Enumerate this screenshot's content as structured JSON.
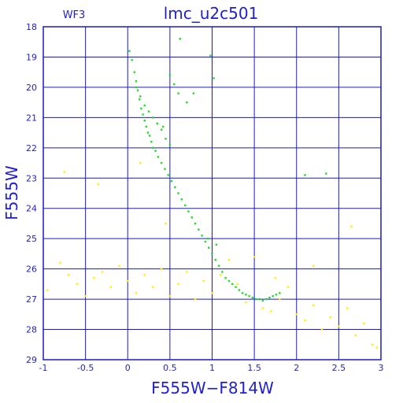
{
  "chart_data": {
    "type": "scatter",
    "title": "lmc_u2c501",
    "corner_label": "WF3",
    "xlabel": "F555W−F814W",
    "ylabel": "F555W",
    "xlim": [
      -1,
      3
    ],
    "ylim": [
      29,
      18
    ],
    "y_inverted": true,
    "grid": true,
    "x_ticks": [
      -1,
      -0.5,
      0,
      0.5,
      1,
      1.5,
      2,
      2.5,
      3
    ],
    "x_tick_labels": [
      "-1",
      "-0.5",
      "0",
      "0.5",
      "1",
      "1.5",
      "2",
      "2.5",
      "3"
    ],
    "y_ticks": [
      18,
      19,
      20,
      21,
      22,
      23,
      24,
      25,
      26,
      27,
      28,
      29
    ],
    "y_tick_labels": [
      "18",
      "19",
      "20",
      "21",
      "22",
      "23",
      "24",
      "25",
      "26",
      "27",
      "28",
      "29"
    ],
    "colors": {
      "axes": "#1a1acc",
      "main_sequence": "#22dd22",
      "field": "#ffee00"
    },
    "series": [
      {
        "color": "#22dd22",
        "x": [
          0.02,
          0.05,
          0.08,
          0.1,
          0.12,
          0.14,
          0.16,
          0.18,
          0.2,
          0.22,
          0.24,
          0.26,
          0.28,
          0.1,
          0.15,
          0.2,
          0.25,
          0.3,
          0.35,
          0.4,
          0.45,
          0.5,
          0.3,
          0.33,
          0.36,
          0.4,
          0.44,
          0.48,
          0.52,
          0.56,
          0.6,
          0.64,
          0.68,
          0.72,
          0.76,
          0.8,
          0.84,
          0.88,
          0.92,
          0.96,
          1.0,
          1.04,
          1.08,
          1.12,
          1.16,
          1.2,
          1.24,
          1.28,
          1.32,
          1.36,
          1.4,
          1.44,
          1.48,
          1.52,
          1.56,
          1.6,
          1.64,
          1.68,
          1.72,
          1.76,
          1.8,
          0.98,
          1.02,
          0.62,
          0.5,
          0.55,
          0.6,
          0.7,
          0.78,
          2.1,
          2.35,
          0.95,
          1.05,
          0.42
        ],
        "y": [
          18.8,
          19.1,
          19.5,
          19.8,
          20.1,
          20.4,
          20.7,
          20.9,
          21.1,
          21.3,
          21.5,
          21.6,
          21.8,
          20.0,
          20.3,
          20.6,
          20.8,
          21.0,
          21.2,
          21.4,
          21.7,
          21.9,
          22.0,
          22.1,
          22.3,
          22.5,
          22.7,
          22.9,
          23.1,
          23.3,
          23.5,
          23.7,
          23.9,
          24.1,
          24.3,
          24.5,
          24.7,
          24.9,
          25.1,
          25.3,
          25.5,
          25.7,
          25.9,
          26.1,
          26.3,
          26.4,
          26.5,
          26.6,
          26.7,
          26.8,
          26.85,
          26.9,
          26.95,
          27.0,
          27.0,
          27.05,
          27.0,
          26.95,
          26.9,
          26.85,
          26.8,
          18.95,
          19.7,
          18.4,
          19.6,
          19.9,
          20.2,
          20.5,
          20.2,
          22.9,
          22.85,
          25.0,
          25.2,
          21.3
        ]
      },
      {
        "color": "#ffee00",
        "x": [
          -0.95,
          -0.8,
          -0.7,
          -0.6,
          -0.5,
          -0.4,
          -0.3,
          -0.2,
          -0.1,
          0.0,
          0.1,
          0.2,
          0.3,
          0.4,
          0.5,
          0.6,
          0.7,
          0.8,
          0.9,
          1.0,
          1.1,
          1.2,
          1.3,
          1.4,
          1.5,
          1.6,
          1.7,
          1.8,
          1.9,
          2.0,
          2.1,
          2.2,
          2.3,
          2.4,
          2.5,
          2.6,
          2.7,
          2.8,
          2.9,
          2.95,
          -0.75,
          -0.35,
          0.15,
          0.45,
          2.65,
          2.2,
          1.75
        ],
        "y": [
          26.7,
          25.8,
          26.2,
          26.5,
          26.9,
          26.3,
          26.1,
          26.6,
          25.9,
          26.4,
          26.8,
          26.2,
          26.6,
          26.0,
          26.9,
          26.5,
          26.1,
          27.0,
          26.4,
          26.8,
          26.2,
          25.7,
          26.5,
          27.1,
          25.6,
          27.3,
          27.4,
          27.0,
          26.6,
          27.5,
          27.7,
          27.2,
          28.0,
          27.6,
          27.9,
          27.3,
          28.2,
          27.8,
          28.5,
          28.6,
          22.8,
          23.2,
          22.5,
          24.5,
          24.6,
          25.9,
          26.3
        ]
      }
    ]
  }
}
